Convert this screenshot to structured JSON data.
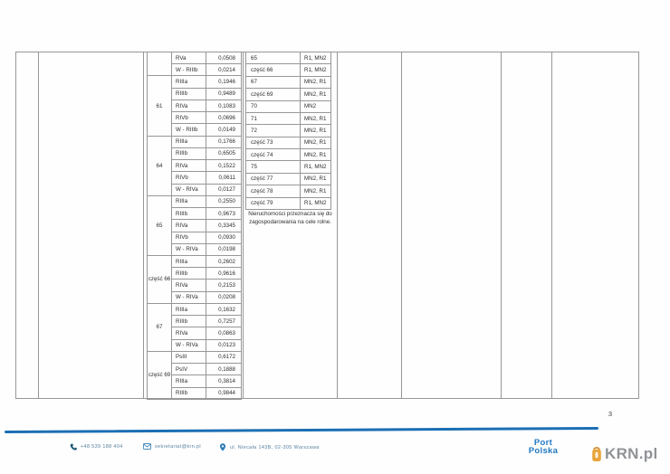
{
  "document": {
    "page_number": "3"
  },
  "table": {
    "left": {
      "groups": [
        {
          "group": "",
          "rows": [
            [
              "RVa",
              "0,0508"
            ],
            [
              "W - RIIIb",
              "0,0214"
            ]
          ]
        },
        {
          "group": "61",
          "rows": [
            [
              "RIIIa",
              "0,1946"
            ],
            [
              "RIIIb",
              "0,9489"
            ],
            [
              "RIVa",
              "0,1083"
            ],
            [
              "RIVb",
              "0,0696"
            ],
            [
              "W - RIIIb",
              "0,0149"
            ]
          ]
        },
        {
          "group": "64",
          "rows": [
            [
              "RIIIa",
              "0,1766"
            ],
            [
              "RIIIb",
              "0,6505"
            ],
            [
              "RIVa",
              "0,1522"
            ],
            [
              "RIVb",
              "0,0611"
            ],
            [
              "W - RIVa",
              "0,0127"
            ]
          ]
        },
        {
          "group": "65",
          "rows": [
            [
              "RIIIa",
              "0,2550"
            ],
            [
              "RIIIb",
              "0,9673"
            ],
            [
              "RIVa",
              "0,3345"
            ],
            [
              "RIVb",
              "0,0930"
            ],
            [
              "W - RIVa",
              "0,0198"
            ]
          ]
        },
        {
          "group": "część 66",
          "rows": [
            [
              "RIIIa",
              "0,2602"
            ],
            [
              "RIIIb",
              "0,9616"
            ],
            [
              "RIVa",
              "0,2153"
            ],
            [
              "W - RIVa",
              "0,0208"
            ]
          ]
        },
        {
          "group": "67",
          "rows": [
            [
              "RIIIa",
              "0,1632"
            ],
            [
              "RIIIb",
              "0,7257"
            ],
            [
              "RIVa",
              "0,0863"
            ],
            [
              "W - RIVa",
              "0,0123"
            ]
          ]
        },
        {
          "group": "część 69",
          "rows": [
            [
              "PsIII",
              "0,6172"
            ],
            [
              "PsIV",
              "0,1888"
            ],
            [
              "RIIIa",
              "0,3814"
            ],
            [
              "RIIIb",
              "0,9844"
            ]
          ]
        }
      ]
    },
    "right": {
      "rows": [
        [
          "65",
          "R1, MN2"
        ],
        [
          "część 66",
          "R1, MN2"
        ],
        [
          "67",
          "MN2, R1"
        ],
        [
          "część 69",
          "MN2, R1"
        ],
        [
          "70",
          "MN2"
        ],
        [
          "71",
          "MN2, R1"
        ],
        [
          "72",
          "MN2, R1"
        ],
        [
          "część 73",
          "MN2, R1"
        ],
        [
          "część 74",
          "MN2, R1"
        ],
        [
          "75",
          "R1, MN2"
        ],
        [
          "część 77",
          "MN2, R1"
        ],
        [
          "część 78",
          "MN2, R1"
        ],
        [
          "część 79",
          "R1, MN2"
        ]
      ],
      "note": "Nieruchomości przeznacza się do zagospodarowania na cele rolne."
    }
  },
  "footer": {
    "phone": "+48 539 188 404",
    "email": "sekretariat@krn.pl",
    "address": "ul. Niecała 143B, 02-305 Warszawa",
    "brand_line1": "Port",
    "brand_line2": "Polska"
  },
  "watermark": {
    "text": "KRN.pl"
  },
  "colors": {
    "accent_blue": "#1b6fb4",
    "watermark_gray": "#8f9296",
    "icon_orange": "#e8a43c",
    "border_gray": "#979797"
  }
}
